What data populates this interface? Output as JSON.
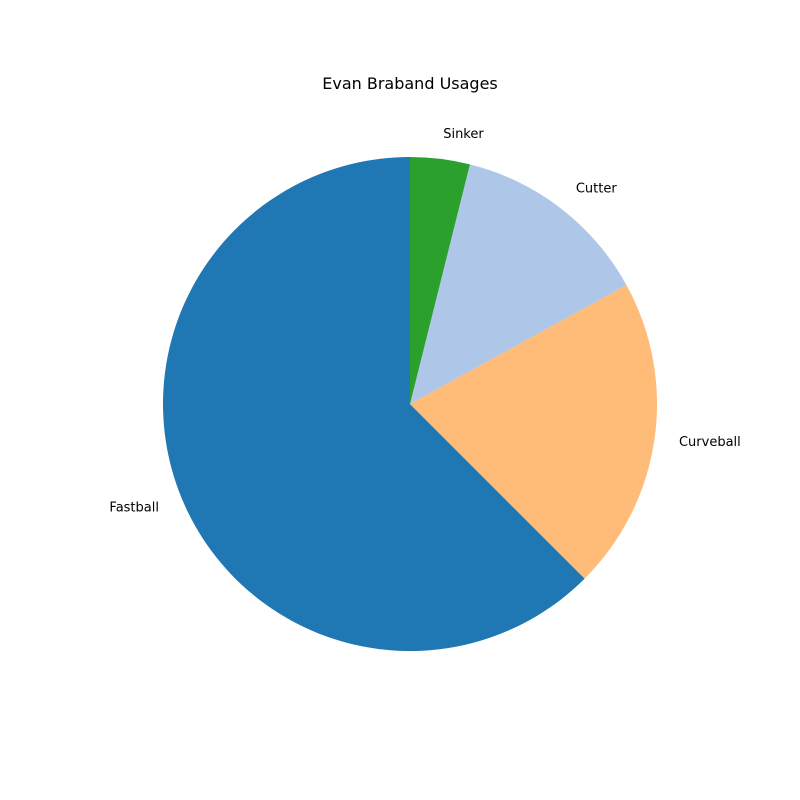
{
  "chart_data": {
    "type": "pie",
    "title": "Evan Braband Usages",
    "start_angle_deg": 90,
    "direction": "counterclockwise",
    "slices": [
      {
        "label": "Fastball",
        "value": 62.5,
        "color": "#1f77b4"
      },
      {
        "label": "Curveball",
        "value": 20.5,
        "color": "#ffbb78"
      },
      {
        "label": "Cutter",
        "value": 13.1,
        "color": "#aec7e8"
      },
      {
        "label": "Sinker",
        "value": 3.9,
        "color": "#2ca02c"
      }
    ]
  }
}
